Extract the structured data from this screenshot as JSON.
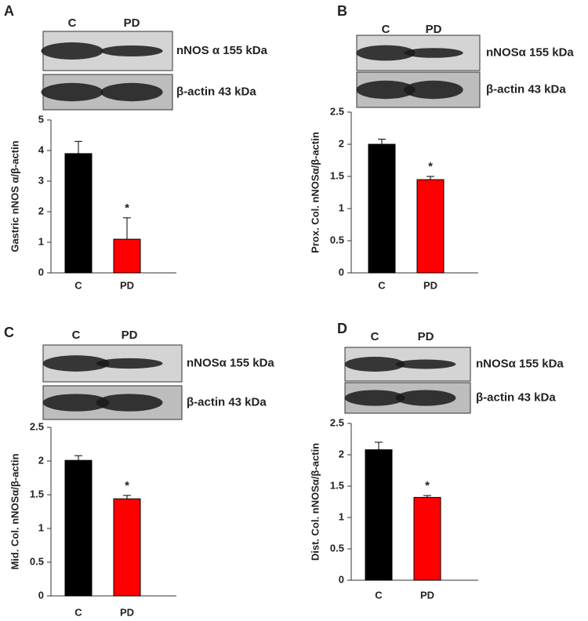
{
  "chart_data": [
    {
      "type": "bar",
      "panel": "A",
      "blot_lanes": [
        "C",
        "PD"
      ],
      "blot_bands": [
        "nNOS α 155 kDa",
        "β-actin 43 kDa"
      ],
      "y_label": "Gastric nNOS α/β-actin",
      "categories": [
        "C",
        "PD"
      ],
      "values": [
        3.9,
        1.1
      ],
      "errors": [
        0.4,
        0.7
      ],
      "significance_labels": [
        null,
        "*"
      ],
      "colors": [
        "#000000",
        "#ff0000"
      ],
      "ylim": [
        0,
        5
      ],
      "yticks": [
        0,
        1,
        2,
        3,
        4,
        5
      ]
    },
    {
      "type": "bar",
      "panel": "B",
      "blot_lanes": [
        "C",
        "PD"
      ],
      "blot_bands": [
        "nNOSα  155 kDa",
        "β-actin 43 kDa"
      ],
      "y_label": "Prox. Col. nNOSα/β-actin",
      "categories": [
        "C",
        "PD"
      ],
      "values": [
        2.0,
        1.45
      ],
      "errors": [
        0.08,
        0.05
      ],
      "significance_labels": [
        null,
        "*"
      ],
      "colors": [
        "#000000",
        "#ff0000"
      ],
      "ylim": [
        0,
        2.5
      ],
      "yticks": [
        0,
        0.5,
        1,
        1.5,
        2,
        2.5
      ]
    },
    {
      "type": "bar",
      "panel": "C",
      "blot_lanes": [
        "C",
        "PD"
      ],
      "blot_bands": [
        "nNOSα 155 kDa",
        "β-actin 43 kDa"
      ],
      "y_label": "Mid. Col. nNOSα/β-actin",
      "categories": [
        "C",
        "PD"
      ],
      "values": [
        2.01,
        1.44
      ],
      "errors": [
        0.07,
        0.05
      ],
      "significance_labels": [
        null,
        "*"
      ],
      "colors": [
        "#000000",
        "#ff0000"
      ],
      "ylim": [
        0,
        2.5
      ],
      "yticks": [
        0,
        0.5,
        1,
        1.5,
        2,
        2.5
      ]
    },
    {
      "type": "bar",
      "panel": "D",
      "blot_lanes": [
        "C",
        "PD"
      ],
      "blot_bands": [
        "nNOSα 155 kDa",
        "β-actin 43 kDa"
      ],
      "y_label": "Dist. Col. nNOSα/β-actin",
      "categories": [
        "C",
        "PD"
      ],
      "values": [
        2.08,
        1.32
      ],
      "errors": [
        0.12,
        0.03
      ],
      "significance_labels": [
        null,
        "*"
      ],
      "colors": [
        "#000000",
        "#ff0000"
      ],
      "ylim": [
        0,
        2.5
      ],
      "yticks": [
        0,
        0.5,
        1,
        1.5,
        2,
        2.5
      ]
    }
  ]
}
